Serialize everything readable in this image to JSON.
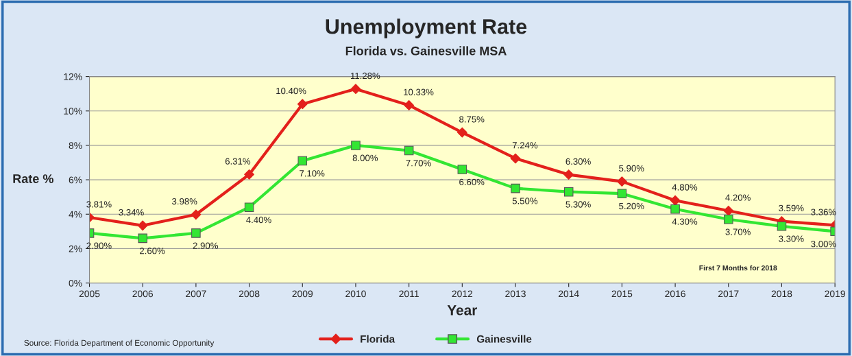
{
  "chart_data": {
    "type": "line",
    "title": "Unemployment Rate",
    "subtitle": "Florida vs. Gainesville MSA",
    "xlabel": "Year",
    "ylabel": "Rate %",
    "categories": [
      "2005",
      "2006",
      "2007",
      "2008",
      "2009",
      "2010",
      "2011",
      "2012",
      "2013",
      "2014",
      "2015",
      "2016",
      "2017",
      "2018",
      "2019"
    ],
    "series": [
      {
        "name": "Florida",
        "color": "#e3201b",
        "marker": "diamond",
        "values": [
          3.81,
          3.34,
          3.98,
          6.31,
          10.4,
          11.28,
          10.33,
          8.75,
          7.24,
          6.3,
          5.9,
          4.8,
          4.2,
          3.59,
          3.36
        ],
        "value_labels": [
          "3.81%",
          "3.34%",
          "3.98%",
          "6.31%",
          "10.40%",
          "11.28%",
          "10.33%",
          "8.75%",
          "7.24%",
          "6.30%",
          "5.90%",
          "4.80%",
          "4.20%",
          "3.59%",
          "3.36%"
        ]
      },
      {
        "name": "Gainesville",
        "color": "#33e633",
        "marker": "square",
        "values": [
          2.9,
          2.6,
          2.9,
          4.4,
          7.1,
          8.0,
          7.7,
          6.6,
          5.5,
          5.3,
          5.2,
          4.3,
          3.7,
          3.3,
          3.0
        ],
        "value_labels": [
          "2.90%",
          "2.60%",
          "2.90%",
          "4.40%",
          "7.10%",
          "8.00%",
          "7.70%",
          "6.60%",
          "5.50%",
          "5.30%",
          "5.20%",
          "4.30%",
          "3.70%",
          "3.30%",
          "3.00%"
        ]
      }
    ],
    "ylim": [
      0,
      12
    ],
    "yticks": [
      {
        "value": 0,
        "label": "0%"
      },
      {
        "value": 2,
        "label": "2%"
      },
      {
        "value": 4,
        "label": "4%"
      },
      {
        "value": 6,
        "label": "6%"
      },
      {
        "value": 8,
        "label": "8%"
      },
      {
        "value": 10,
        "label": "10%"
      },
      {
        "value": 12,
        "label": "12%"
      }
    ],
    "grid": "y",
    "legend": "bottom",
    "line_style": "solid",
    "annotations": [
      "First 7 Months for 2018",
      "Source: Florida Department of Economic Opportunity"
    ]
  }
}
